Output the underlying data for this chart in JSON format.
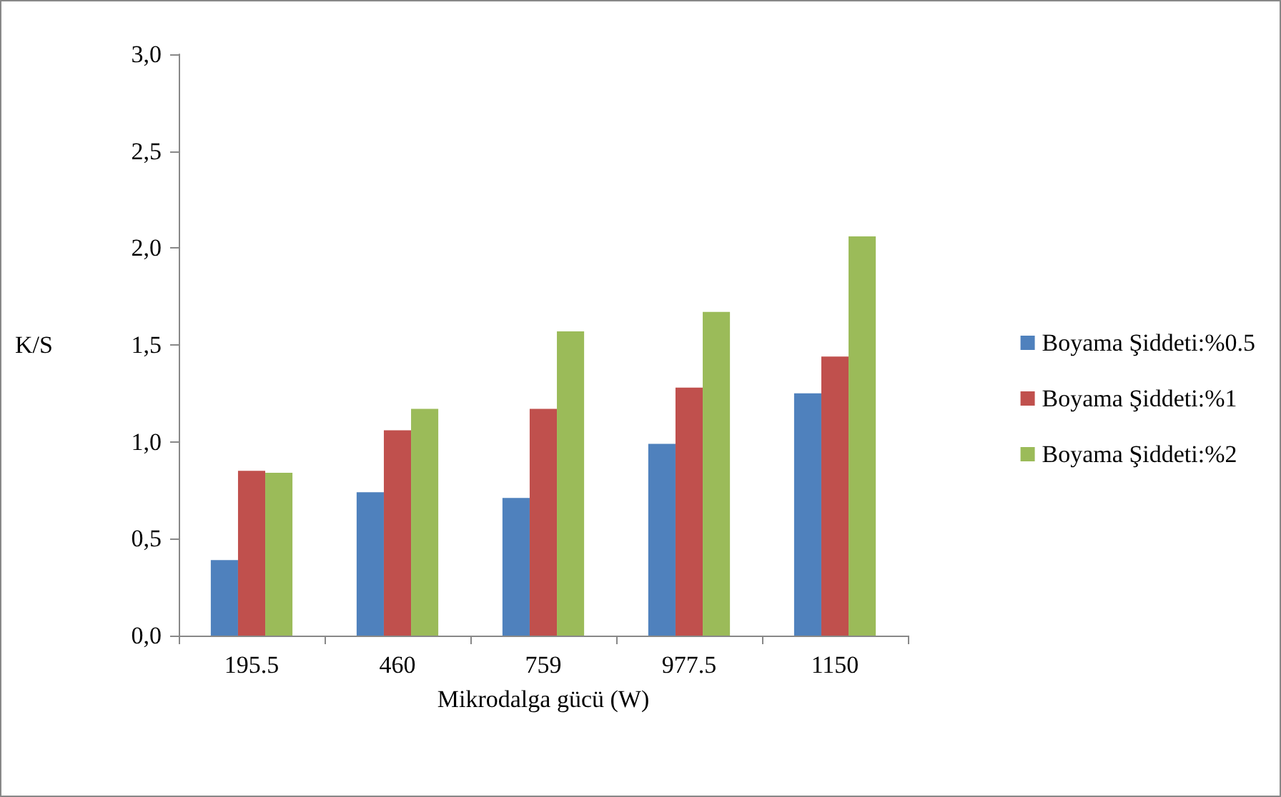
{
  "chart_data": {
    "type": "bar",
    "xlabel": "Mikrodalga gücü (W)",
    "ylabel": "K/S",
    "categories": [
      "195.5",
      "460",
      "759",
      "977.5",
      "1150"
    ],
    "series": [
      {
        "name": "Boyama Şiddeti:%0.5",
        "color": "#4f81bd",
        "values": [
          0.39,
          0.74,
          0.71,
          0.99,
          1.25
        ]
      },
      {
        "name": "Boyama Şiddeti:%1",
        "color": "#c0504d",
        "values": [
          0.85,
          1.06,
          1.17,
          1.28,
          1.44
        ]
      },
      {
        "name": "Boyama Şiddeti:%2",
        "color": "#9bbb59",
        "values": [
          0.84,
          1.17,
          1.57,
          1.67,
          2.06
        ]
      }
    ],
    "ylim": [
      0,
      3
    ],
    "yticks": [
      {
        "value": 0,
        "label": "0,0"
      },
      {
        "value": 0.5,
        "label": "0,5"
      },
      {
        "value": 1,
        "label": "1,0"
      },
      {
        "value": 1.5,
        "label": "1,5"
      },
      {
        "value": 2,
        "label": "2,0"
      },
      {
        "value": 2.5,
        "label": "2,5"
      },
      {
        "value": 3,
        "label": "3,0"
      }
    ],
    "grid": false,
    "legend": "right"
  }
}
